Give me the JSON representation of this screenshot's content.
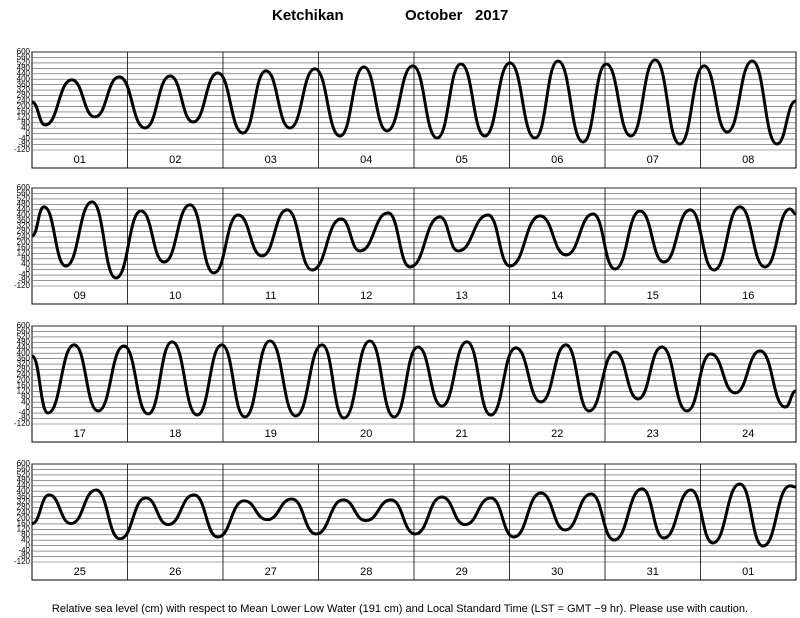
{
  "title": "Ketchikan",
  "title_date": "October   2017",
  "note": "Relative sea level (cm) with respect to Mean Lower Low Water (191 cm) and Local Standard Time (LST = GMT −9 hr). Please use with caution.",
  "chart_data": [
    {
      "type": "line",
      "color": "#000000",
      "grid": true,
      "xlim": [
        0,
        192
      ],
      "ylim": [
        -120,
        600
      ],
      "yticks": [
        -120,
        -80,
        -40,
        0,
        40,
        80,
        120,
        160,
        200,
        240,
        280,
        320,
        360,
        400,
        440,
        480,
        520,
        560,
        600
      ],
      "xticks": [
        {
          "value": 12,
          "label": "01"
        },
        {
          "value": 36,
          "label": "02"
        },
        {
          "value": 60,
          "label": "03"
        },
        {
          "value": 84,
          "label": "04"
        },
        {
          "value": 108,
          "label": "05"
        },
        {
          "value": 132,
          "label": "06"
        },
        {
          "value": 156,
          "label": "07"
        },
        {
          "value": 180,
          "label": "08"
        }
      ],
      "x": [
        0,
        3.3,
        10,
        15.8,
        21.9,
        28.4,
        34.7,
        40.5,
        46.7,
        53,
        58.8,
        64.8,
        71.1,
        77.4,
        83.4,
        89.2,
        95.7,
        101.8,
        107.8,
        113.8,
        120.1,
        126.4,
        132.2,
        138.5,
        144.3,
        150.5,
        156.6,
        162.8,
        168.9,
        174.7,
        181,
        187.2,
        192
      ],
      "values": [
        233,
        64,
        395,
        123,
        417,
        42,
        424,
        86,
        446,
        5,
        461,
        42,
        476,
        -17,
        490,
        20,
        498,
        -32,
        512,
        -17,
        520,
        -32,
        534,
        -61,
        512,
        -17,
        542,
        -76,
        498,
        12,
        534,
        -76,
        240
      ]
    },
    {
      "type": "line",
      "color": "#000000",
      "grid": true,
      "xlim": [
        0,
        192
      ],
      "ylim": [
        -120,
        600
      ],
      "yticks": [
        -120,
        -80,
        -40,
        0,
        40,
        80,
        120,
        160,
        200,
        240,
        280,
        320,
        360,
        400,
        440,
        480,
        520,
        560,
        600
      ],
      "xticks": [
        {
          "value": 12,
          "label": "09"
        },
        {
          "value": 36,
          "label": "10"
        },
        {
          "value": 60,
          "label": "11"
        },
        {
          "value": 84,
          "label": "12"
        },
        {
          "value": 108,
          "label": "13"
        },
        {
          "value": 132,
          "label": "14"
        },
        {
          "value": 156,
          "label": "15"
        },
        {
          "value": 180,
          "label": "16"
        }
      ],
      "x": [
        0,
        3,
        8.5,
        15.1,
        21.1,
        27.4,
        33.2,
        39.7,
        45.7,
        51.8,
        57.8,
        64.1,
        70.4,
        77.7,
        82.4,
        89.5,
        95,
        102.5,
        107.1,
        114.6,
        120.1,
        127.7,
        134.2,
        141,
        146.5,
        152.8,
        158.8,
        165.4,
        171.4,
        177.9,
        184.2,
        190.5,
        192
      ],
      "values": [
        248,
        461,
        27,
        498,
        -61,
        431,
        56,
        476,
        -24,
        402,
        101,
        439,
        -2,
        373,
        137,
        417,
        20,
        387,
        137,
        402,
        27,
        395,
        108,
        409,
        5,
        431,
        56,
        439,
        -2,
        461,
        20,
        446,
        409
      ]
    },
    {
      "type": "line",
      "color": "#000000",
      "grid": true,
      "xlim": [
        0,
        192
      ],
      "ylim": [
        -120,
        600
      ],
      "yticks": [
        -120,
        -80,
        -40,
        0,
        40,
        80,
        120,
        160,
        200,
        240,
        280,
        320,
        360,
        400,
        440,
        480,
        520,
        560,
        600
      ],
      "xticks": [
        {
          "value": 12,
          "label": "17"
        },
        {
          "value": 36,
          "label": "18"
        },
        {
          "value": 60,
          "label": "19"
        },
        {
          "value": 84,
          "label": "20"
        },
        {
          "value": 108,
          "label": "21"
        },
        {
          "value": 132,
          "label": "22"
        },
        {
          "value": 156,
          "label": "23"
        },
        {
          "value": 180,
          "label": "24"
        }
      ],
      "x": [
        0,
        4,
        10.6,
        16.6,
        23.1,
        29.2,
        35.2,
        41.5,
        47.7,
        53.5,
        59.8,
        66.3,
        72.9,
        78.4,
        84.9,
        91,
        97,
        103,
        109.3,
        115.3,
        121.6,
        127.9,
        134.2,
        140,
        146.5,
        152.3,
        158.3,
        164.6,
        170.6,
        176.7,
        183,
        189.3,
        192
      ],
      "values": [
        380,
        -39,
        461,
        -24,
        453,
        -46,
        483,
        -54,
        461,
        -68,
        490,
        -61,
        461,
        -76,
        490,
        -68,
        446,
        12,
        483,
        -54,
        439,
        42,
        461,
        -24,
        409,
        64,
        446,
        -24,
        395,
        108,
        417,
        5,
        123
      ]
    },
    {
      "type": "line",
      "color": "#000000",
      "grid": true,
      "xlim": [
        0,
        192
      ],
      "ylim": [
        -120,
        600
      ],
      "yticks": [
        -120,
        -80,
        -40,
        0,
        40,
        80,
        120,
        160,
        200,
        240,
        280,
        320,
        360,
        400,
        440,
        480,
        520,
        560,
        600
      ],
      "xticks": [
        {
          "value": 12,
          "label": "25"
        },
        {
          "value": 36,
          "label": "26"
        },
        {
          "value": 60,
          "label": "27"
        },
        {
          "value": 84,
          "label": "28"
        },
        {
          "value": 108,
          "label": "29"
        },
        {
          "value": 132,
          "label": "30"
        },
        {
          "value": 156,
          "label": "31"
        },
        {
          "value": 180,
          "label": "01"
        }
      ],
      "x": [
        0,
        4.3,
        9.8,
        16.1,
        22.1,
        28.6,
        34.2,
        40.7,
        46.7,
        53.3,
        59.1,
        65.3,
        71.4,
        78.2,
        83.9,
        90.2,
        96.3,
        103,
        108.8,
        115.3,
        121.1,
        127.9,
        134,
        140.5,
        146.3,
        153.3,
        158.8,
        165.6,
        171.1,
        177.9,
        183.7,
        190.5,
        192
      ],
      "values": [
        162,
        373,
        162,
        409,
        50,
        351,
        155,
        373,
        64,
        329,
        191,
        343,
        86,
        336,
        184,
        336,
        86,
        358,
        155,
        351,
        64,
        387,
        115,
        380,
        42,
        417,
        56,
        409,
        20,
        453,
        -2,
        439,
        431
      ]
    }
  ]
}
